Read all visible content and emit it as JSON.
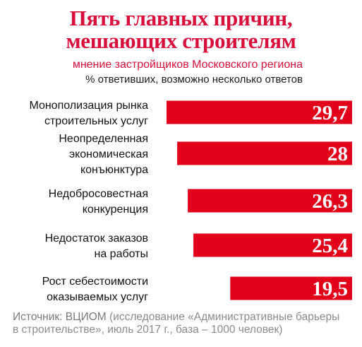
{
  "header": {
    "title_line1": "Пять главных причин,",
    "title_line2": "мешающих строителям",
    "subtitle": "мнение застройщиков Московского региона",
    "note": "% ответивших, возможно несколько ответов"
  },
  "source": {
    "label": "Источник: ВЦИОМ",
    "text": "(исследование «Административные барьеры в строительстве», июль 2017 г., база – 1000 человек)"
  },
  "colors": {
    "accent": "#d80f3c",
    "bar": "#e3001b",
    "bar_text": "#ffffff",
    "label_text": "#111111"
  },
  "chart_data": {
    "type": "bar",
    "orientation": "horizontal",
    "categories": [
      [
        "Монополизация рынка",
        "строительных услуг"
      ],
      [
        "Неопределенная",
        "экономическая",
        "конъюнктура"
      ],
      [
        "Недобросовестная",
        "конкуренция"
      ],
      [
        "Недостаток заказов",
        "на работы"
      ],
      [
        "Рост себестоимости",
        "оказываемых услуг"
      ]
    ],
    "value_labels": [
      "29,7",
      "28",
      "26,3",
      "25,4",
      "19,5"
    ],
    "values": [
      29.7,
      28,
      26.3,
      25.4,
      19.5
    ],
    "grid": false,
    "legend": false
  }
}
